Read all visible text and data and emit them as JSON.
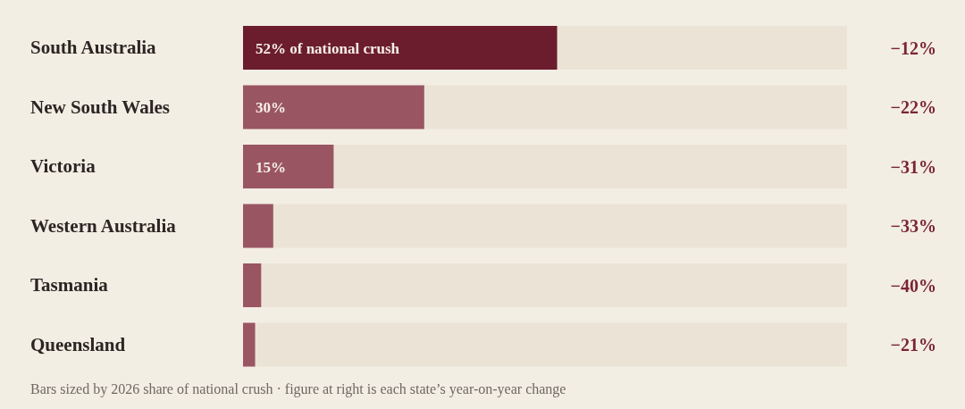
{
  "chart_data": {
    "type": "bar",
    "orientation": "horizontal",
    "categories": [
      "South Australia",
      "New South Wales",
      "Victoria",
      "Western Australia",
      "Tasmania",
      "Queensland"
    ],
    "values": [
      52,
      30,
      15,
      5,
      3,
      2
    ],
    "colors": [
      "#6b1d2e",
      "#9a5563",
      "#9a5563",
      "#9a5563",
      "#9a5563",
      "#9a5563"
    ],
    "value_labels": [
      "52% of national crush",
      "30%",
      "15%",
      null,
      null,
      null
    ],
    "xlim": [
      0,
      100
    ],
    "tick_labels": "y",
    "annotations": [
      "−12%",
      "−22%",
      "−31%",
      "−33%",
      "−40%",
      "−21%",
      "Bars sized by 2026 share of national crush · figure at right is each state’s year-on-year change"
    ]
  }
}
